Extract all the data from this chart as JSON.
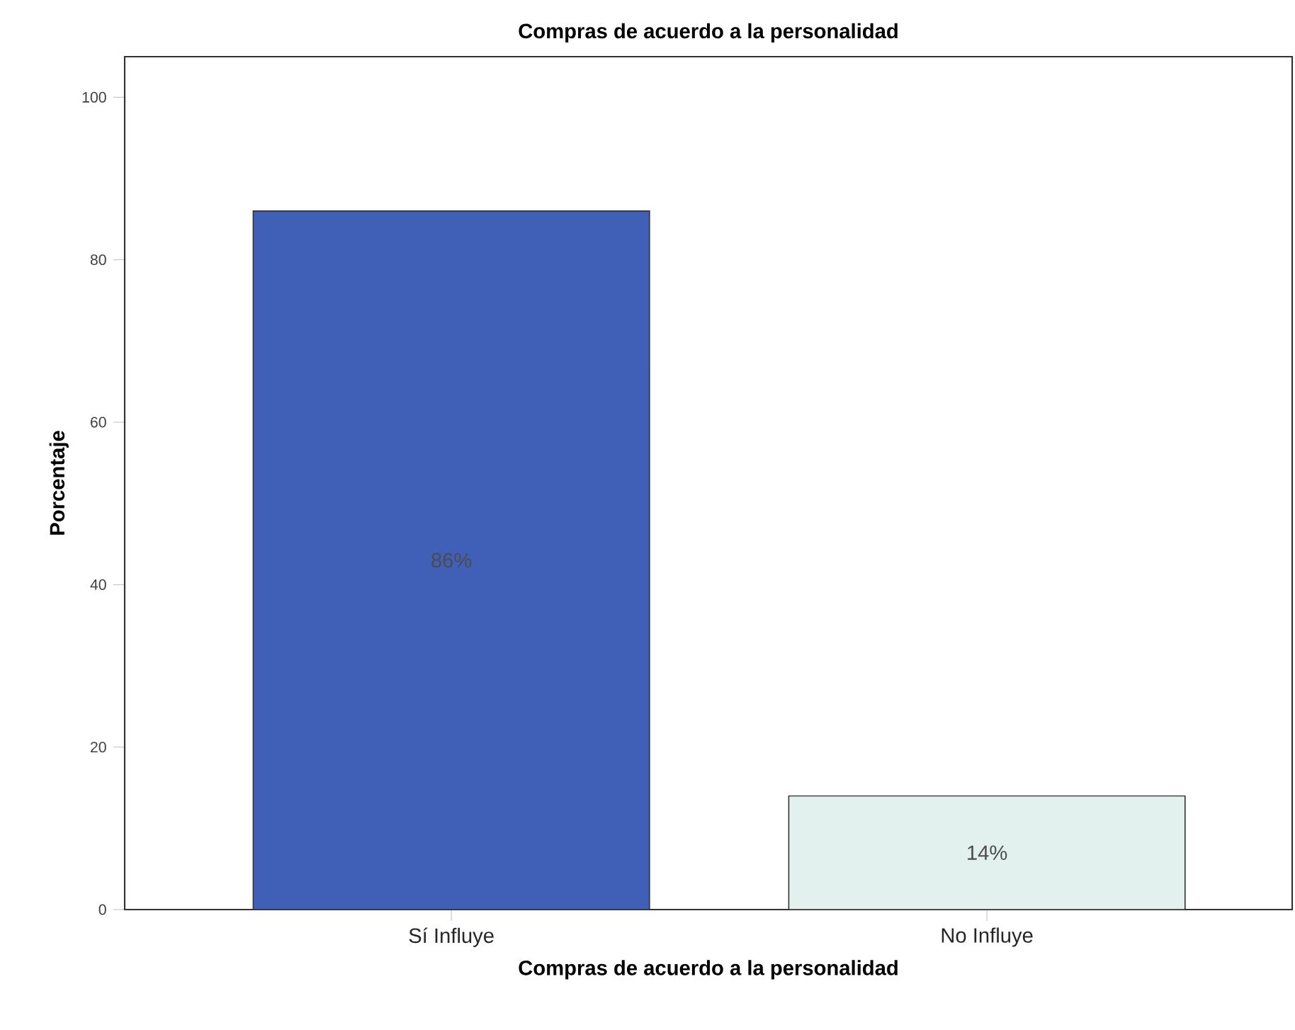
{
  "chart_data": {
    "type": "bar",
    "title": "Compras de acuerdo a la personalidad",
    "xlabel": "Compras de acuerdo a la personalidad",
    "ylabel": "Porcentaje",
    "categories": [
      "Sí Influye",
      "No Influye"
    ],
    "values": [
      86,
      14
    ],
    "colors": [
      "#4060b8",
      "#e2f1ee"
    ],
    "value_labels": [
      "86%",
      "14%"
    ],
    "ylim": [
      0,
      105
    ],
    "yticks": [
      0,
      20,
      40,
      60,
      80,
      100
    ]
  }
}
